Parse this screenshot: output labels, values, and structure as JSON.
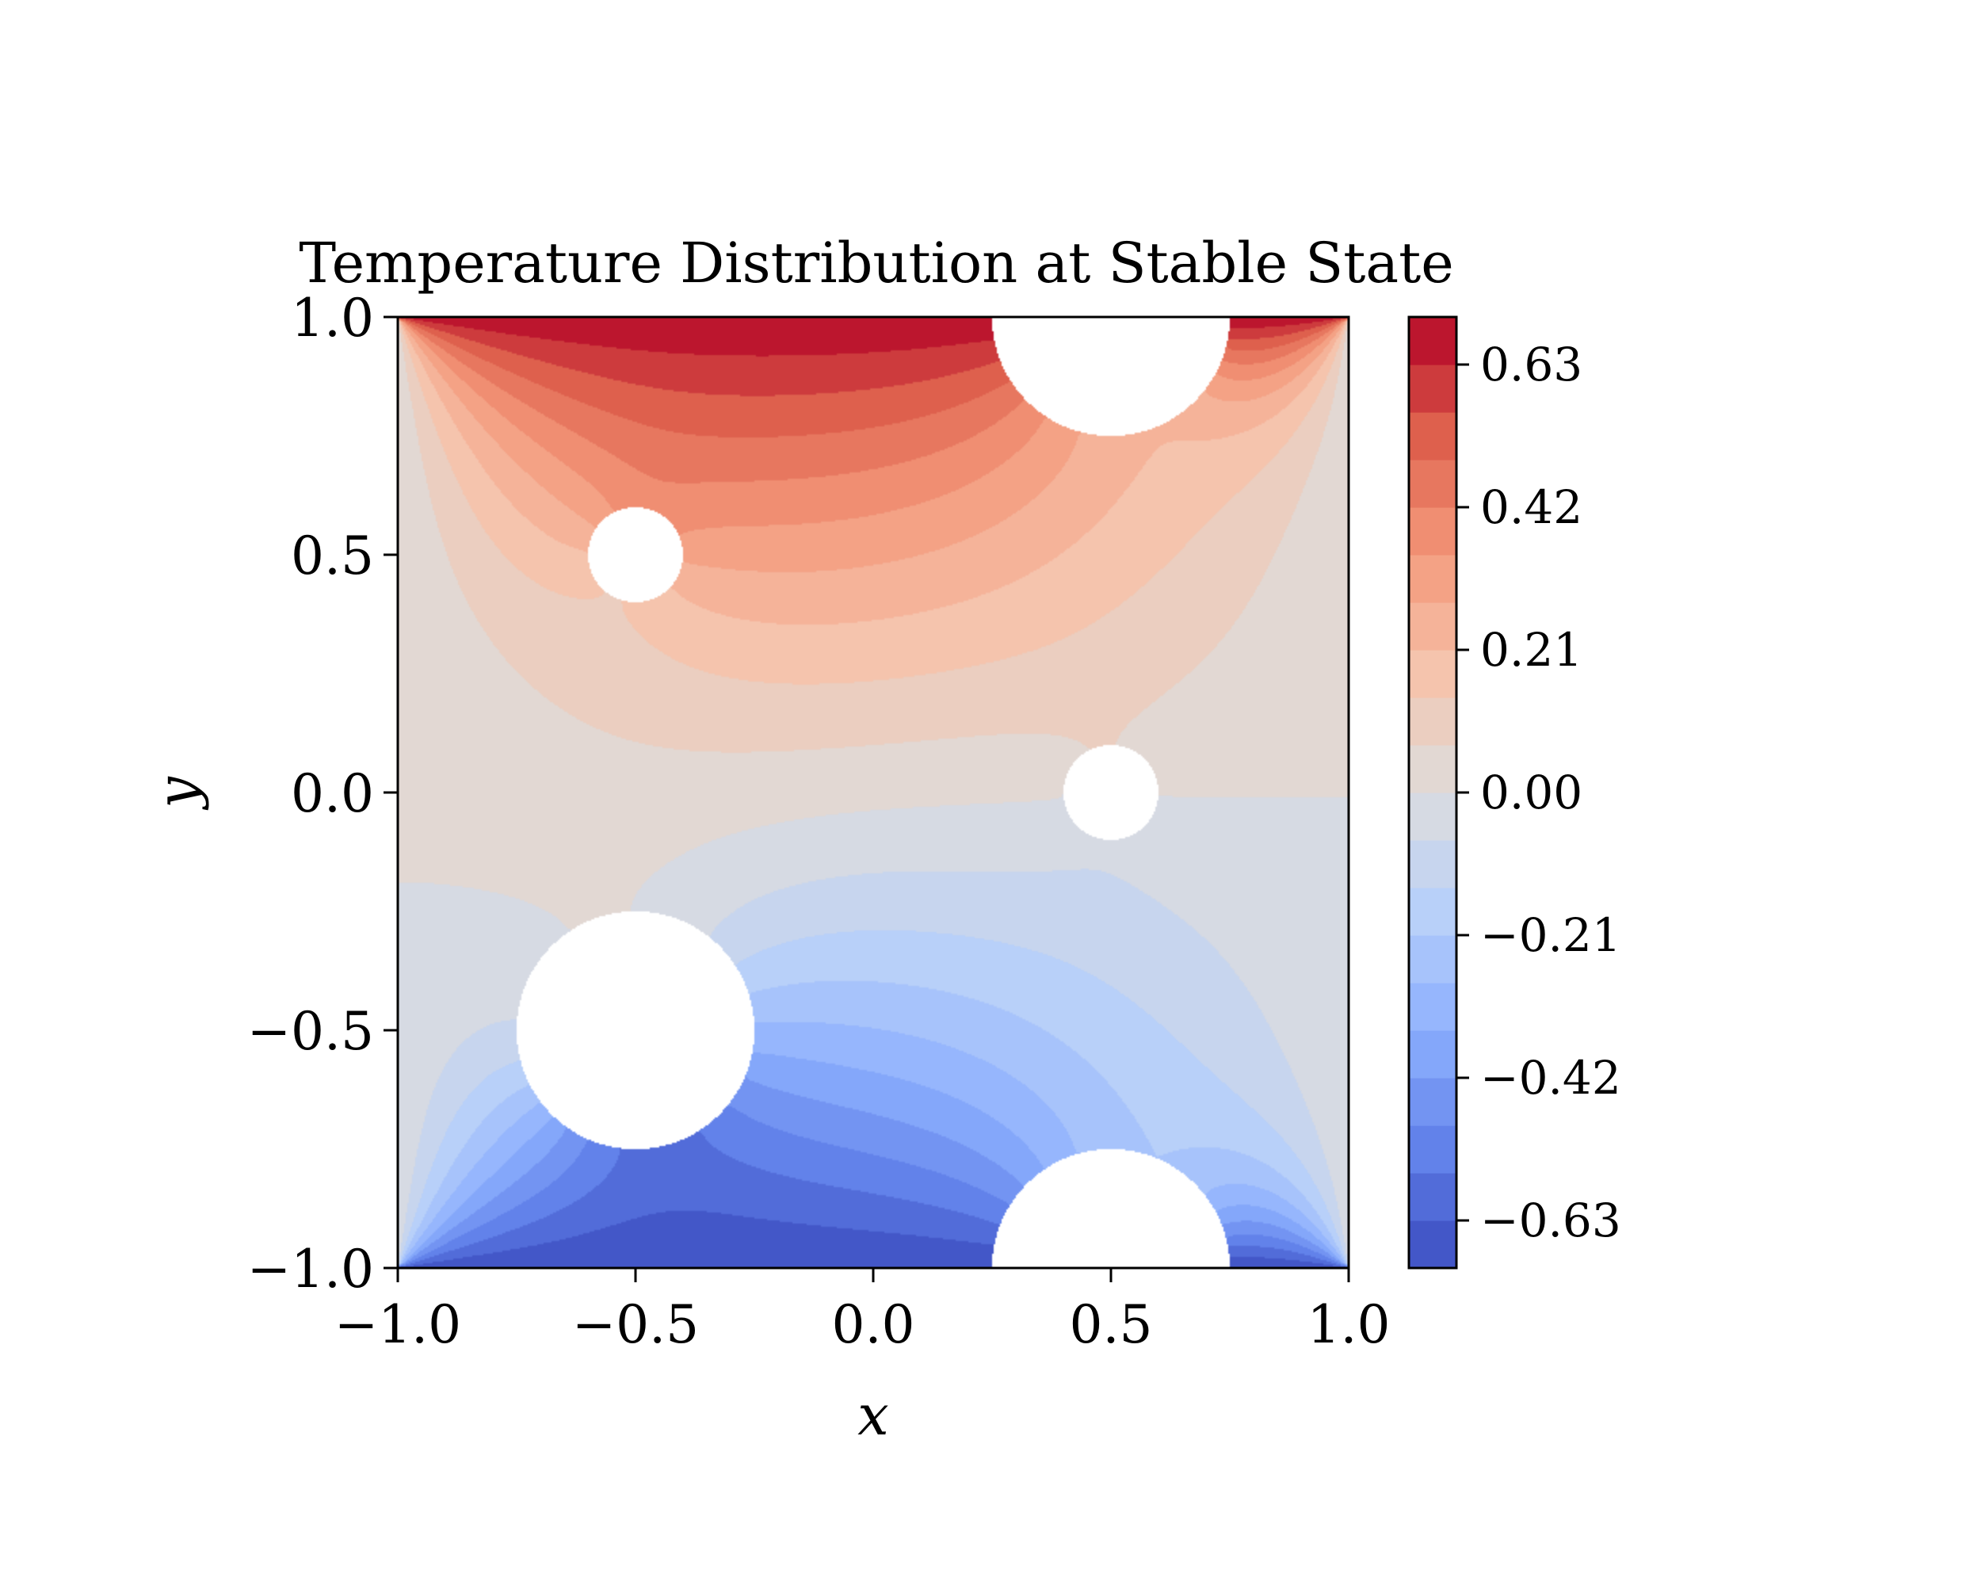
{
  "chart_data": {
    "type": "heatmap",
    "title": "Temperature Distribution at Stable State",
    "xlabel": "x",
    "ylabel": "y",
    "xlim": [
      -1.0,
      1.0
    ],
    "ylim": [
      -1.0,
      1.0
    ],
    "x_ticks": [
      "−1.0",
      "−0.5",
      "0.0",
      "0.5",
      "1.0"
    ],
    "x_tick_values": [
      -1.0,
      -0.5,
      0.0,
      0.5,
      1.0
    ],
    "y_ticks": [
      "−1.0",
      "−0.5",
      "0.0",
      "0.5",
      "1.0"
    ],
    "y_tick_values": [
      -1.0,
      -0.5,
      0.0,
      0.5,
      1.0
    ],
    "boundary_conditions": {
      "top": 0.7,
      "bottom": -0.7,
      "left": 0.0,
      "right": 0.0
    },
    "holes": [
      {
        "cx": 0.5,
        "cy": 1.0,
        "r": 0.25
      },
      {
        "cx": 0.5,
        "cy": -1.0,
        "r": 0.25
      },
      {
        "cx": -0.5,
        "cy": 0.5,
        "r": 0.1
      },
      {
        "cx": 0.5,
        "cy": 0.0,
        "r": 0.1
      },
      {
        "cx": -0.5,
        "cy": -0.5,
        "r": 0.25
      }
    ],
    "colorbar": {
      "cmap": "coolwarm",
      "vmin": -0.7,
      "vmax": 0.7,
      "levels": [
        -0.7,
        -0.63,
        -0.56,
        -0.49,
        -0.42,
        -0.35,
        -0.28,
        -0.21,
        -0.14,
        -0.07,
        0.0,
        0.07,
        0.14,
        0.21,
        0.28,
        0.35,
        0.42,
        0.49,
        0.56,
        0.63,
        0.7
      ],
      "tick_values": [
        -0.63,
        -0.42,
        -0.21,
        0.0,
        0.21,
        0.42,
        0.63
      ],
      "tick_labels": [
        "−0.63",
        "−0.42",
        "−0.21",
        "0.00",
        "0.21",
        "0.42",
        "0.63"
      ]
    }
  }
}
